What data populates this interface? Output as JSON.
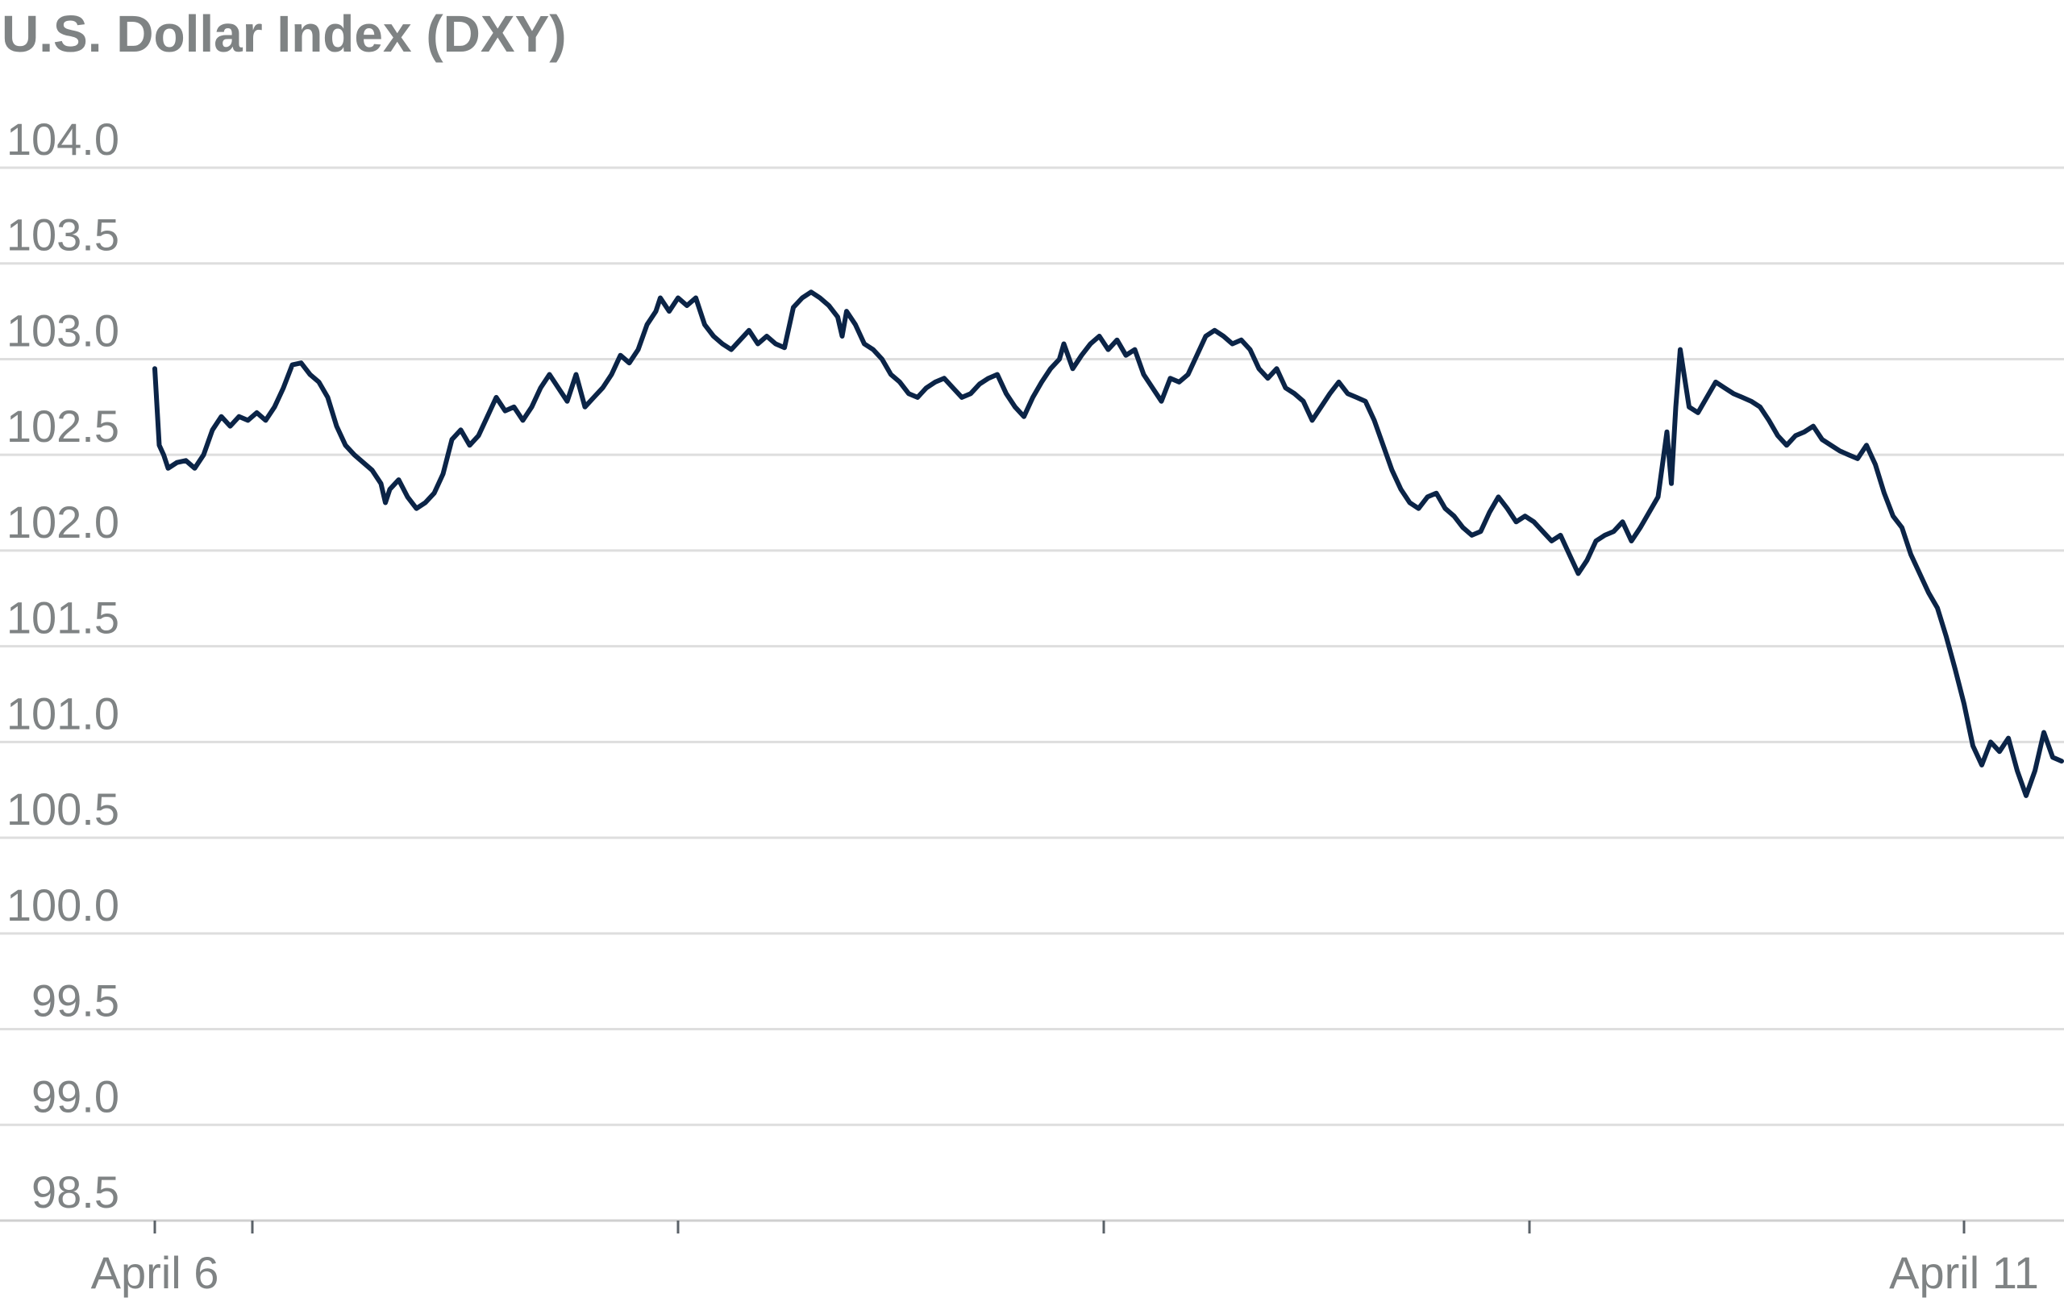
{
  "chart_data": {
    "type": "line",
    "title": "U.S. Dollar Index (DXY)",
    "xlabel": "",
    "ylabel": "",
    "ylim": [
      98.5,
      104.0
    ],
    "yticks": [
      "104.0",
      "103.5",
      "103.0",
      "102.5",
      "102.0",
      "101.5",
      "101.0",
      "100.5",
      "100.0",
      "99.5",
      "99.0",
      "98.5"
    ],
    "xticks": [
      {
        "value": 0.0,
        "label": "April 6"
      },
      {
        "value": 0.22,
        "label": ""
      },
      {
        "value": 1.18,
        "label": ""
      },
      {
        "value": 2.14,
        "label": ""
      },
      {
        "value": 3.1,
        "label": ""
      },
      {
        "value": 4.08,
        "label": "April 11"
      }
    ],
    "xlim": [
      -0.35,
      4.3
    ],
    "grid": true,
    "legend": "none",
    "line_color": "#0b2447",
    "series": [
      {
        "name": "",
        "points": [
          [
            0.0,
            102.95
          ],
          [
            0.01,
            102.55
          ],
          [
            0.02,
            102.5
          ],
          [
            0.03,
            102.43
          ],
          [
            0.05,
            102.46
          ],
          [
            0.07,
            102.47
          ],
          [
            0.09,
            102.43
          ],
          [
            0.11,
            102.5
          ],
          [
            0.13,
            102.63
          ],
          [
            0.15,
            102.7
          ],
          [
            0.17,
            102.65
          ],
          [
            0.19,
            102.7
          ],
          [
            0.21,
            102.68
          ],
          [
            0.23,
            102.72
          ],
          [
            0.25,
            102.68
          ],
          [
            0.27,
            102.75
          ],
          [
            0.29,
            102.85
          ],
          [
            0.31,
            102.97
          ],
          [
            0.33,
            102.98
          ],
          [
            0.35,
            102.92
          ],
          [
            0.37,
            102.88
          ],
          [
            0.39,
            102.8
          ],
          [
            0.41,
            102.65
          ],
          [
            0.43,
            102.55
          ],
          [
            0.45,
            102.5
          ],
          [
            0.47,
            102.46
          ],
          [
            0.49,
            102.42
          ],
          [
            0.51,
            102.35
          ],
          [
            0.52,
            102.25
          ],
          [
            0.53,
            102.32
          ],
          [
            0.55,
            102.37
          ],
          [
            0.57,
            102.28
          ],
          [
            0.59,
            102.22
          ],
          [
            0.61,
            102.25
          ],
          [
            0.63,
            102.3
          ],
          [
            0.65,
            102.4
          ],
          [
            0.67,
            102.58
          ],
          [
            0.69,
            102.63
          ],
          [
            0.71,
            102.55
          ],
          [
            0.73,
            102.6
          ],
          [
            0.75,
            102.7
          ],
          [
            0.77,
            102.8
          ],
          [
            0.79,
            102.73
          ],
          [
            0.81,
            102.75
          ],
          [
            0.83,
            102.68
          ],
          [
            0.85,
            102.75
          ],
          [
            0.87,
            102.85
          ],
          [
            0.89,
            102.92
          ],
          [
            0.91,
            102.85
          ],
          [
            0.93,
            102.78
          ],
          [
            0.95,
            102.92
          ],
          [
            0.97,
            102.75
          ],
          [
            0.99,
            102.8
          ],
          [
            1.01,
            102.85
          ],
          [
            1.03,
            102.92
          ],
          [
            1.05,
            103.02
          ],
          [
            1.07,
            102.98
          ],
          [
            1.09,
            103.05
          ],
          [
            1.11,
            103.18
          ],
          [
            1.13,
            103.25
          ],
          [
            1.14,
            103.32
          ],
          [
            1.16,
            103.25
          ],
          [
            1.18,
            103.32
          ],
          [
            1.2,
            103.28
          ],
          [
            1.22,
            103.32
          ],
          [
            1.24,
            103.18
          ],
          [
            1.26,
            103.12
          ],
          [
            1.28,
            103.08
          ],
          [
            1.3,
            103.05
          ],
          [
            1.32,
            103.1
          ],
          [
            1.34,
            103.15
          ],
          [
            1.36,
            103.08
          ],
          [
            1.38,
            103.12
          ],
          [
            1.4,
            103.08
          ],
          [
            1.42,
            103.06
          ],
          [
            1.44,
            103.27
          ],
          [
            1.46,
            103.32
          ],
          [
            1.48,
            103.35
          ],
          [
            1.5,
            103.32
          ],
          [
            1.52,
            103.28
          ],
          [
            1.54,
            103.22
          ],
          [
            1.55,
            103.12
          ],
          [
            1.56,
            103.25
          ],
          [
            1.58,
            103.18
          ],
          [
            1.6,
            103.08
          ],
          [
            1.62,
            103.05
          ],
          [
            1.64,
            103.0
          ],
          [
            1.66,
            102.92
          ],
          [
            1.68,
            102.88
          ],
          [
            1.7,
            102.82
          ],
          [
            1.72,
            102.8
          ],
          [
            1.74,
            102.85
          ],
          [
            1.76,
            102.88
          ],
          [
            1.78,
            102.9
          ],
          [
            1.8,
            102.85
          ],
          [
            1.82,
            102.8
          ],
          [
            1.84,
            102.82
          ],
          [
            1.86,
            102.87
          ],
          [
            1.88,
            102.9
          ],
          [
            1.9,
            102.92
          ],
          [
            1.92,
            102.82
          ],
          [
            1.94,
            102.75
          ],
          [
            1.96,
            102.7
          ],
          [
            1.98,
            102.8
          ],
          [
            2.0,
            102.88
          ],
          [
            2.02,
            102.95
          ],
          [
            2.04,
            103.0
          ],
          [
            2.05,
            103.08
          ],
          [
            2.07,
            102.95
          ],
          [
            2.09,
            103.02
          ],
          [
            2.11,
            103.08
          ],
          [
            2.13,
            103.12
          ],
          [
            2.15,
            103.05
          ],
          [
            2.17,
            103.1
          ],
          [
            2.19,
            103.02
          ],
          [
            2.21,
            103.05
          ],
          [
            2.23,
            102.92
          ],
          [
            2.25,
            102.85
          ],
          [
            2.27,
            102.78
          ],
          [
            2.29,
            102.9
          ],
          [
            2.31,
            102.88
          ],
          [
            2.33,
            102.92
          ],
          [
            2.35,
            103.02
          ],
          [
            2.37,
            103.12
          ],
          [
            2.39,
            103.15
          ],
          [
            2.41,
            103.12
          ],
          [
            2.43,
            103.08
          ],
          [
            2.45,
            103.1
          ],
          [
            2.47,
            103.05
          ],
          [
            2.49,
            102.95
          ],
          [
            2.51,
            102.9
          ],
          [
            2.53,
            102.95
          ],
          [
            2.55,
            102.85
          ],
          [
            2.57,
            102.82
          ],
          [
            2.59,
            102.78
          ],
          [
            2.61,
            102.68
          ],
          [
            2.63,
            102.75
          ],
          [
            2.65,
            102.82
          ],
          [
            2.67,
            102.88
          ],
          [
            2.69,
            102.82
          ],
          [
            2.71,
            102.8
          ],
          [
            2.73,
            102.78
          ],
          [
            2.75,
            102.68
          ],
          [
            2.77,
            102.55
          ],
          [
            2.79,
            102.42
          ],
          [
            2.81,
            102.32
          ],
          [
            2.83,
            102.25
          ],
          [
            2.85,
            102.22
          ],
          [
            2.87,
            102.28
          ],
          [
            2.89,
            102.3
          ],
          [
            2.91,
            102.22
          ],
          [
            2.93,
            102.18
          ],
          [
            2.95,
            102.12
          ],
          [
            2.97,
            102.08
          ],
          [
            2.99,
            102.1
          ],
          [
            3.01,
            102.2
          ],
          [
            3.03,
            102.28
          ],
          [
            3.05,
            102.22
          ],
          [
            3.07,
            102.15
          ],
          [
            3.09,
            102.18
          ],
          [
            3.11,
            102.15
          ],
          [
            3.13,
            102.1
          ],
          [
            3.15,
            102.05
          ],
          [
            3.17,
            102.08
          ],
          [
            3.19,
            101.98
          ],
          [
            3.21,
            101.88
          ],
          [
            3.23,
            101.95
          ],
          [
            3.25,
            102.05
          ],
          [
            3.27,
            102.08
          ],
          [
            3.29,
            102.1
          ],
          [
            3.31,
            102.15
          ],
          [
            3.33,
            102.05
          ],
          [
            3.35,
            102.12
          ],
          [
            3.37,
            102.2
          ],
          [
            3.39,
            102.28
          ],
          [
            3.41,
            102.62
          ],
          [
            3.42,
            102.35
          ],
          [
            3.43,
            102.75
          ],
          [
            3.44,
            103.05
          ],
          [
            3.46,
            102.75
          ],
          [
            3.48,
            102.72
          ],
          [
            3.5,
            102.8
          ],
          [
            3.52,
            102.88
          ],
          [
            3.54,
            102.85
          ],
          [
            3.56,
            102.82
          ],
          [
            3.58,
            102.8
          ],
          [
            3.6,
            102.78
          ],
          [
            3.62,
            102.75
          ],
          [
            3.64,
            102.68
          ],
          [
            3.66,
            102.6
          ],
          [
            3.68,
            102.55
          ],
          [
            3.7,
            102.6
          ],
          [
            3.72,
            102.62
          ],
          [
            3.74,
            102.65
          ],
          [
            3.76,
            102.58
          ],
          [
            3.78,
            102.55
          ],
          [
            3.8,
            102.52
          ],
          [
            3.82,
            102.5
          ],
          [
            3.84,
            102.48
          ],
          [
            3.86,
            102.55
          ],
          [
            3.88,
            102.45
          ],
          [
            3.9,
            102.3
          ],
          [
            3.92,
            102.18
          ],
          [
            3.94,
            102.12
          ],
          [
            3.96,
            101.98
          ],
          [
            3.98,
            101.88
          ],
          [
            4.0,
            101.78
          ],
          [
            4.02,
            101.7
          ],
          [
            4.04,
            101.55
          ],
          [
            4.06,
            101.38
          ],
          [
            4.08,
            101.2
          ],
          [
            4.1,
            100.98
          ],
          [
            4.12,
            100.88
          ],
          [
            4.14,
            101.0
          ],
          [
            4.16,
            100.95
          ],
          [
            4.18,
            101.02
          ],
          [
            4.2,
            100.85
          ],
          [
            4.22,
            100.72
          ],
          [
            4.24,
            100.85
          ],
          [
            4.26,
            101.05
          ],
          [
            4.28,
            100.92
          ],
          [
            4.3,
            100.9
          ]
        ]
      }
    ]
  }
}
